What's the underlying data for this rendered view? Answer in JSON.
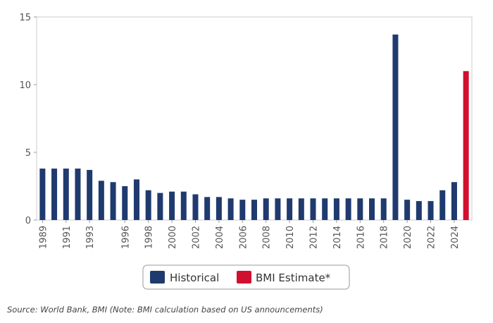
{
  "chart_data": {
    "type": "bar",
    "x": [
      1989,
      1990,
      1991,
      1992,
      1993,
      1994,
      1995,
      1996,
      1997,
      1998,
      1999,
      2000,
      2001,
      2002,
      2003,
      2004,
      2005,
      2006,
      2007,
      2008,
      2009,
      2010,
      2011,
      2012,
      2013,
      2014,
      2015,
      2016,
      2017,
      2018,
      2019,
      2020,
      2021,
      2022,
      2023,
      2024,
      2025
    ],
    "series": [
      {
        "name": "Historical",
        "color": "#1f3a6e",
        "values": [
          3.8,
          3.8,
          3.8,
          3.8,
          3.7,
          2.9,
          2.8,
          2.5,
          3.0,
          2.2,
          2.0,
          2.1,
          2.1,
          1.9,
          1.7,
          1.7,
          1.6,
          1.5,
          1.5,
          1.6,
          1.6,
          1.6,
          1.6,
          1.6,
          1.6,
          1.6,
          1.6,
          1.6,
          1.6,
          1.6,
          13.7,
          1.5,
          1.4,
          1.4,
          2.2,
          2.8,
          null
        ]
      },
      {
        "name": "BMI Estimate*",
        "color": "#d0102e",
        "values": [
          null,
          null,
          null,
          null,
          null,
          null,
          null,
          null,
          null,
          null,
          null,
          null,
          null,
          null,
          null,
          null,
          null,
          null,
          null,
          null,
          null,
          null,
          null,
          null,
          null,
          null,
          null,
          null,
          null,
          null,
          null,
          null,
          null,
          null,
          null,
          null,
          11.0
        ]
      }
    ],
    "xticks": [
      "1989",
      "1991",
      "1993",
      "1996",
      "1998",
      "2000",
      "2002",
      "2004",
      "2006",
      "2008",
      "2010",
      "2012",
      "2014",
      "2016",
      "2018",
      "2020",
      "2022",
      "2024"
    ],
    "yticks": [
      "0",
      "5",
      "10",
      "15"
    ],
    "ylim": [
      0,
      15
    ],
    "grid": false,
    "legend_position": "bottom",
    "title": "",
    "xlabel": "",
    "ylabel": ""
  },
  "legend": {
    "items": [
      {
        "label": "Historical",
        "color": "#1f3a6e"
      },
      {
        "label": "BMI Estimate*",
        "color": "#d0102e"
      }
    ]
  },
  "source_note": "Source: World Bank, BMI (Note: BMI calculation based on US announcements)"
}
